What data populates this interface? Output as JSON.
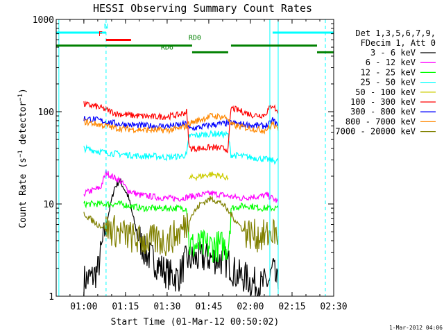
{
  "chart_data": {
    "type": "line",
    "title": "HESSI Observing Summary Count Rates",
    "xlabel": "Start Time (01-Mar-12 00:50:02)",
    "ylabel": "Count Rate (s⁻¹ detector⁻¹)",
    "ylabel_base": "Count Rate (s",
    "ylabel_sup1": "−1",
    "ylabel_mid": " detector",
    "ylabel_sup2": "−1",
    "ylabel_end": ")",
    "y_scale": "log",
    "xlim": [
      "00:50:02",
      "02:30:00"
    ],
    "ylim": [
      1,
      1000
    ],
    "x_ticks": [
      "01:00",
      "01:15",
      "01:30",
      "01:45",
      "02:00",
      "02:15",
      "02:30"
    ],
    "y_ticks": [
      "1",
      "10",
      "100",
      "1000"
    ],
    "legend_title_1": "Det 1,3,5,6,7,9,",
    "legend_title_2": "FDecim 1, Att 0",
    "legend_position": "right",
    "footer_date": "1-Mar-2012 04:06",
    "series": [
      {
        "name": "3 - 6 keV",
        "color": "#000000",
        "x": [
          "01:00",
          "01:03",
          "01:05",
          "01:08",
          "01:11",
          "01:13",
          "01:16",
          "01:19",
          "01:22",
          "01:25",
          "01:28",
          "01:31",
          "01:34",
          "01:37",
          "01:40",
          "01:43",
          "01:46",
          "01:49",
          "01:52",
          "01:55",
          "01:58",
          "02:01",
          "02:04",
          "02:07",
          "02:08",
          "02:10"
        ],
        "y": [
          1.5,
          1.6,
          1.9,
          6,
          15,
          18,
          12,
          5,
          3,
          2.5,
          2,
          1.7,
          1.6,
          2.5,
          2.5,
          2.6,
          2.6,
          2.5,
          2.3,
          1.7,
          1.6,
          1.4,
          1.3,
          1.5,
          2,
          1.2
        ]
      },
      {
        "name": "6 - 12 keV",
        "color": "#ff00ff",
        "x": [
          "01:00",
          "01:03",
          "01:06",
          "01:08",
          "01:10",
          "01:13",
          "01:16",
          "01:20",
          "01:25",
          "01:30",
          "01:35",
          "01:38",
          "01:42",
          "01:46",
          "01:50",
          "01:53",
          "01:57",
          "02:00",
          "02:03",
          "02:06",
          "02:08",
          "02:10"
        ],
        "y": [
          13,
          14,
          15,
          22,
          20,
          18,
          14,
          12.5,
          12,
          11.5,
          11.5,
          12,
          12.5,
          13,
          12.5,
          12,
          11.5,
          12,
          12,
          12.5,
          11.5,
          10.5
        ]
      },
      {
        "name": "12 - 25 keV",
        "color": "#00ff00",
        "x": [
          "01:00",
          "01:03",
          "01:06",
          "01:09",
          "01:13",
          "01:17",
          "01:21",
          "01:25",
          "01:29",
          "01:33",
          "01:37",
          "01:38",
          "01:41",
          "01:45",
          "01:49",
          "01:52",
          "01:53",
          "01:57",
          "02:00",
          "02:04",
          "02:07",
          "02:09",
          "02:10"
        ],
        "y": [
          10,
          10,
          10,
          10,
          10,
          9.5,
          9,
          9,
          9,
          9,
          9,
          3.5,
          3.5,
          3.5,
          3.5,
          3.5,
          9,
          9.5,
          9.5,
          9,
          9,
          9,
          9
        ]
      },
      {
        "name": "25 - 50 keV",
        "color": "#00ffff",
        "x": [
          "01:00",
          "01:04",
          "01:08",
          "01:12",
          "01:16",
          "01:20",
          "01:25",
          "01:30",
          "01:35",
          "01:37",
          "01:38",
          "01:42",
          "01:46",
          "01:50",
          "01:52",
          "01:53",
          "01:57",
          "02:00",
          "02:04",
          "02:07",
          "02:10"
        ],
        "y": [
          40,
          38,
          36,
          35,
          34,
          33,
          33,
          32,
          33,
          34,
          55,
          56,
          58,
          57,
          56,
          34,
          33,
          32,
          31,
          30,
          29
        ]
      },
      {
        "name": "50 - 100 keV",
        "color": "#cccc00",
        "x": [
          "01:38",
          "01:42",
          "01:46",
          "01:50",
          "01:52"
        ],
        "y": [
          19,
          20,
          21,
          20,
          19
        ]
      },
      {
        "name": "100 - 300 keV",
        "color": "#ff0000",
        "x": [
          "01:00",
          "01:04",
          "01:08",
          "01:12",
          "01:16",
          "01:20",
          "01:25",
          "01:30",
          "01:34",
          "01:37",
          "01:38",
          "01:42",
          "01:46",
          "01:50",
          "01:52",
          "01:53",
          "01:57",
          "02:01",
          "02:05",
          "02:07",
          "02:08",
          "02:10"
        ],
        "y": [
          120,
          115,
          105,
          95,
          92,
          90,
          88,
          89,
          92,
          100,
          40,
          40,
          41,
          40,
          39,
          110,
          100,
          92,
          92,
          110,
          120,
          95
        ]
      },
      {
        "name": "300 - 800 keV",
        "color": "#0000ff",
        "x": [
          "01:00",
          "01:04",
          "01:08",
          "01:12",
          "01:16",
          "01:20",
          "01:25",
          "01:30",
          "01:34",
          "01:37",
          "01:38",
          "01:42",
          "01:46",
          "01:50",
          "01:52",
          "01:53",
          "01:57",
          "02:01",
          "02:05",
          "02:07",
          "02:08",
          "02:10"
        ],
        "y": [
          85,
          82,
          78,
          74,
          72,
          71,
          70,
          70,
          71,
          74,
          65,
          68,
          72,
          74,
          75,
          76,
          73,
          71,
          70,
          74,
          82,
          70
        ]
      },
      {
        "name": "800 - 7000 keV",
        "color": "#ff8800",
        "x": [
          "01:00",
          "01:04",
          "01:08",
          "01:12",
          "01:16",
          "01:20",
          "01:25",
          "01:30",
          "01:34",
          "01:37",
          "01:38",
          "01:42",
          "01:46",
          "01:50",
          "01:52",
          "01:53",
          "01:57",
          "02:01",
          "02:05",
          "02:07",
          "02:08",
          "02:10"
        ],
        "y": [
          78,
          74,
          70,
          66,
          65,
          64,
          63,
          63,
          65,
          70,
          75,
          82,
          90,
          88,
          85,
          72,
          68,
          65,
          63,
          68,
          75,
          62
        ]
      },
      {
        "name": "7000 - 20000 keV",
        "color": "#808000",
        "x": [
          "01:00",
          "01:02",
          "01:05",
          "01:08",
          "01:12",
          "01:16",
          "01:20",
          "01:25",
          "01:30",
          "01:35",
          "01:38",
          "01:42",
          "01:46",
          "01:50",
          "01:54",
          "01:58",
          "02:02",
          "02:06",
          "02:08",
          "02:10"
        ],
        "y": [
          8,
          7,
          6,
          5.5,
          5,
          4.5,
          4,
          4,
          4,
          5,
          7,
          10,
          11.5,
          10,
          7,
          5,
          4.5,
          4.5,
          5,
          4.5
        ]
      }
    ],
    "annotations": [
      {
        "label": "N",
        "color": "#00ffff",
        "x": "01:08",
        "y": 800
      },
      {
        "label": "F",
        "color": "#ff0000",
        "x": "01:06",
        "y": 660
      },
      {
        "label": "RD0",
        "color": "#008000",
        "x": "01:40",
        "y": 600
      },
      {
        "label": "RD6",
        "color": "#008000",
        "x": "01:30",
        "y": 470
      }
    ],
    "flag_bars": [
      {
        "name": "N",
        "color": "#00ffff",
        "y": 720,
        "ranges": [
          [
            "00:50:02",
            "01:08"
          ],
          [
            "02:08",
            "02:30"
          ]
        ]
      },
      {
        "name": "F",
        "color": "#ff0000",
        "y": 600,
        "ranges": [
          [
            "01:08",
            "01:17"
          ]
        ]
      },
      {
        "name": "RD0",
        "color": "#008000",
        "y": 520,
        "ranges": [
          [
            "00:50:02",
            "01:39"
          ],
          [
            "01:53",
            "02:24"
          ]
        ]
      },
      {
        "name": "RD6",
        "color": "#008000",
        "y": 440,
        "ranges": [
          [
            "01:39",
            "01:52"
          ],
          [
            "02:24",
            "02:30"
          ]
        ]
      }
    ],
    "vertical_lines": [
      {
        "x": "00:51",
        "color": "#00ffff",
        "style": "solid"
      },
      {
        "x": "01:08",
        "color": "#00ffff",
        "style": "dashed"
      },
      {
        "x": "02:07",
        "color": "#00ffff",
        "style": "solid"
      },
      {
        "x": "02:10",
        "color": "#00ffff",
        "style": "solid"
      },
      {
        "x": "02:27",
        "color": "#00ffff",
        "style": "dashed"
      }
    ]
  }
}
